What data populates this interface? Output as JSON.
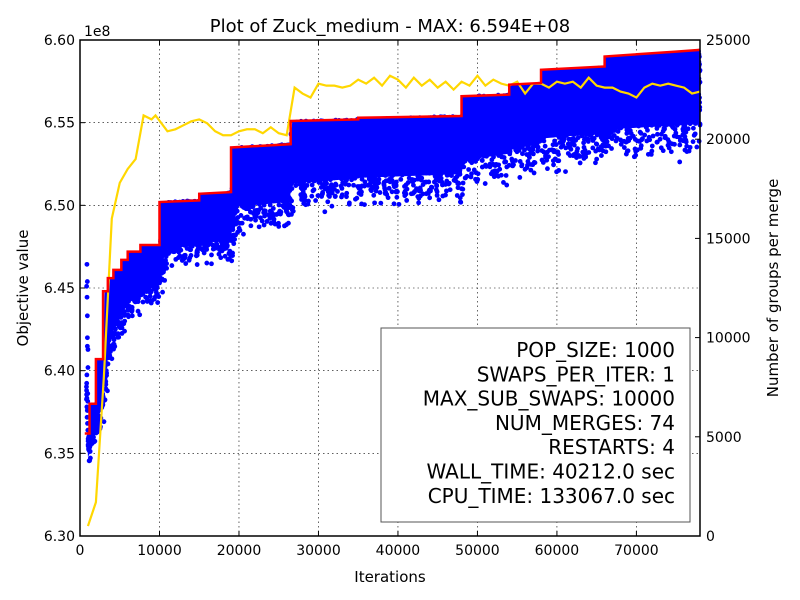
{
  "chart_data": {
    "type": "line",
    "title": "Plot of Zuck_medium - MAX: 6.594E+08",
    "xlabel": "Iterations",
    "ylabel": "Objective value",
    "y2label": "Number of groups per merge",
    "y_multiplier": "1e8",
    "xlim": [
      0,
      78000
    ],
    "ylim": [
      6.3,
      6.6
    ],
    "y2lim": [
      0,
      25000
    ],
    "x_ticks": [
      0,
      10000,
      20000,
      30000,
      40000,
      50000,
      60000,
      70000
    ],
    "x_tick_labels": [
      "0",
      "10000",
      "20000",
      "30000",
      "40000",
      "50000",
      "60000",
      "70000"
    ],
    "y_ticks": [
      6.3,
      6.35,
      6.4,
      6.45,
      6.5,
      6.55,
      6.6
    ],
    "y_tick_labels": [
      "6.30",
      "6.35",
      "6.40",
      "6.45",
      "6.50",
      "6.55",
      "6.60"
    ],
    "y2_ticks": [
      0,
      5000,
      10000,
      15000,
      20000,
      25000
    ],
    "y2_tick_labels": [
      "0",
      "5000",
      "10000",
      "15000",
      "20000",
      "25000"
    ],
    "grid": true,
    "colors": {
      "max_line": "#ff0000",
      "population": "#0000ff",
      "groups_per_merge": "#ffd700"
    },
    "series": [
      {
        "key": "max_line",
        "axis": "left",
        "points": [
          [
            600,
            6.362
          ],
          [
            1200,
            6.362
          ],
          [
            1200,
            6.38
          ],
          [
            2000,
            6.38
          ],
          [
            2000,
            6.407
          ],
          [
            2900,
            6.407
          ],
          [
            2900,
            6.448
          ],
          [
            3500,
            6.448
          ],
          [
            3500,
            6.456
          ],
          [
            4200,
            6.456
          ],
          [
            4200,
            6.461
          ],
          [
            5200,
            6.461
          ],
          [
            5200,
            6.467
          ],
          [
            6000,
            6.467
          ],
          [
            6000,
            6.472
          ],
          [
            7600,
            6.472
          ],
          [
            7600,
            6.476
          ],
          [
            10000,
            6.476
          ],
          [
            10000,
            6.502
          ],
          [
            15000,
            6.503
          ],
          [
            15000,
            6.507
          ],
          [
            19000,
            6.508
          ],
          [
            19000,
            6.535
          ],
          [
            26500,
            6.537
          ],
          [
            26500,
            6.551
          ],
          [
            35000,
            6.552
          ],
          [
            35000,
            6.553
          ],
          [
            48000,
            6.554
          ],
          [
            48000,
            6.566
          ],
          [
            54000,
            6.567
          ],
          [
            54000,
            6.573
          ],
          [
            58000,
            6.574
          ],
          [
            58000,
            6.582
          ],
          [
            66000,
            6.584
          ],
          [
            66000,
            6.59
          ],
          [
            75000,
            6.593
          ],
          [
            78000,
            6.594
          ]
        ]
      },
      {
        "key": "groups_per_merge",
        "axis": "right",
        "points": [
          [
            1000,
            500
          ],
          [
            2000,
            1700
          ],
          [
            3000,
            8000
          ],
          [
            4000,
            16000
          ],
          [
            5000,
            17800
          ],
          [
            6000,
            18500
          ],
          [
            7000,
            19000
          ],
          [
            8000,
            21200
          ],
          [
            9000,
            21000
          ],
          [
            9500,
            21200
          ],
          [
            11000,
            20400
          ],
          [
            12000,
            20500
          ],
          [
            13000,
            20700
          ],
          [
            14000,
            20900
          ],
          [
            15000,
            21000
          ],
          [
            16000,
            20800
          ],
          [
            17000,
            20400
          ],
          [
            18000,
            20200
          ],
          [
            19000,
            20200
          ],
          [
            20000,
            20400
          ],
          [
            21000,
            20500
          ],
          [
            22000,
            20500
          ],
          [
            23000,
            20300
          ],
          [
            24000,
            20600
          ],
          [
            25000,
            20300
          ],
          [
            26000,
            20200
          ],
          [
            27000,
            22600
          ],
          [
            28000,
            22300
          ],
          [
            29000,
            22100
          ],
          [
            30000,
            22800
          ],
          [
            31000,
            22700
          ],
          [
            32000,
            22700
          ],
          [
            33000,
            22600
          ],
          [
            34000,
            22700
          ],
          [
            35000,
            23000
          ],
          [
            36000,
            22800
          ],
          [
            37000,
            23100
          ],
          [
            38000,
            22700
          ],
          [
            39000,
            23200
          ],
          [
            40000,
            23000
          ],
          [
            41000,
            22600
          ],
          [
            42000,
            23100
          ],
          [
            43000,
            22700
          ],
          [
            44000,
            23000
          ],
          [
            45000,
            22600
          ],
          [
            46000,
            22900
          ],
          [
            47000,
            22500
          ],
          [
            48000,
            22900
          ],
          [
            49000,
            22700
          ],
          [
            50000,
            23200
          ],
          [
            51000,
            22700
          ],
          [
            52000,
            23000
          ],
          [
            53000,
            22800
          ],
          [
            54000,
            22700
          ],
          [
            55000,
            22900
          ],
          [
            56000,
            22300
          ],
          [
            57000,
            22800
          ],
          [
            58000,
            22800
          ],
          [
            59000,
            22600
          ],
          [
            60000,
            22900
          ],
          [
            61000,
            22800
          ],
          [
            62000,
            22900
          ],
          [
            63000,
            22600
          ],
          [
            64000,
            23100
          ],
          [
            65000,
            22700
          ],
          [
            66000,
            22600
          ],
          [
            67000,
            22600
          ],
          [
            68000,
            22400
          ],
          [
            69000,
            22300
          ],
          [
            70000,
            22100
          ],
          [
            71000,
            22600
          ],
          [
            72000,
            22800
          ],
          [
            73000,
            22700
          ],
          [
            74000,
            22800
          ],
          [
            75000,
            22700
          ],
          [
            76000,
            22600
          ],
          [
            77000,
            22300
          ],
          [
            78000,
            22400
          ]
        ]
      },
      {
        "key": "population",
        "axis": "left",
        "type": "scatter",
        "bands": [
          [
            1000,
            6.34,
            6.362
          ],
          [
            2000,
            6.355,
            6.38
          ],
          [
            3000,
            6.365,
            6.407
          ],
          [
            4000,
            6.405,
            6.448
          ],
          [
            6000,
            6.425,
            6.467
          ],
          [
            8000,
            6.432,
            6.472
          ],
          [
            10000,
            6.44,
            6.476
          ],
          [
            11000,
            6.458,
            6.502
          ],
          [
            15000,
            6.462,
            6.503
          ],
          [
            19000,
            6.462,
            6.508
          ],
          [
            20000,
            6.48,
            6.535
          ],
          [
            26000,
            6.483,
            6.537
          ],
          [
            27000,
            6.493,
            6.551
          ],
          [
            35000,
            6.497,
            6.552
          ],
          [
            48000,
            6.5,
            6.554
          ],
          [
            49000,
            6.507,
            6.566
          ],
          [
            54000,
            6.512,
            6.567
          ],
          [
            58000,
            6.518,
            6.574
          ],
          [
            66000,
            6.522,
            6.584
          ],
          [
            78000,
            6.525,
            6.594
          ]
        ]
      }
    ],
    "annotation": [
      "POP_SIZE: 1000",
      "SWAPS_PER_ITER: 1",
      "MAX_SUB_SWAPS: 10000",
      "NUM_MERGES: 74",
      "RESTARTS: 4",
      "WALL_TIME: 40212.0 sec",
      "CPU_TIME: 133067.0 sec"
    ],
    "annotation_placement": "bottom-right"
  }
}
